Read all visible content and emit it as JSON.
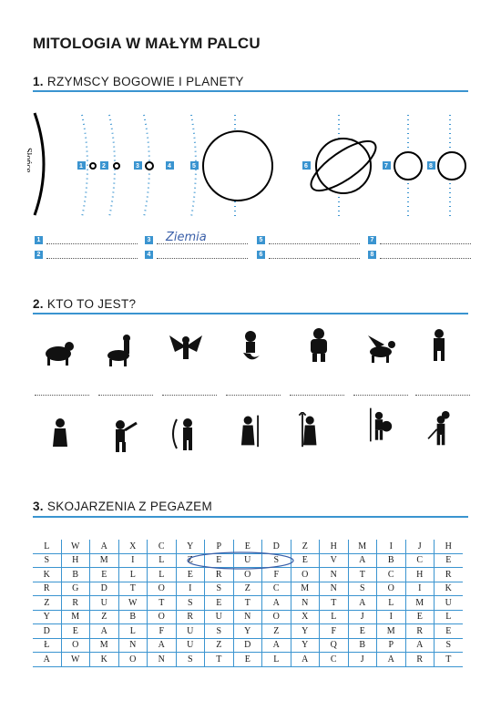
{
  "title": "MITOLOGIA W MAŁYM PALCU",
  "s1": {
    "num": "1.",
    "label": "RZYMSCY BOGOWIE I PLANETY",
    "sun": "Słońce",
    "answers_left": [
      "1",
      "2"
    ],
    "answers_mid": [
      "3",
      "4"
    ],
    "answers_right1": [
      "5",
      "6"
    ],
    "answers_right2": [
      "7",
      "8"
    ],
    "handwritten": "Ziemia",
    "planet_labels": [
      "1",
      "2",
      "3",
      "4",
      "5",
      "6",
      "7",
      "8"
    ]
  },
  "s2": {
    "num": "2.",
    "label": "KTO TO JEST?"
  },
  "s3": {
    "num": "3.",
    "label": "SKOJARZENIA Z PEGAZEM",
    "grid": [
      [
        "L",
        "W",
        "A",
        "X",
        "C",
        "Y",
        "P",
        "E",
        "D",
        "Z",
        "H",
        "M",
        "I",
        "J",
        "H"
      ],
      [
        "S",
        "H",
        "M",
        "I",
        "L",
        "Z",
        "E",
        "U",
        "S",
        "E",
        "V",
        "A",
        "B",
        "C",
        "E"
      ],
      [
        "K",
        "B",
        "E",
        "L",
        "L",
        "E",
        "R",
        "O",
        "F",
        "O",
        "N",
        "T",
        "C",
        "H",
        "R"
      ],
      [
        "R",
        "G",
        "D",
        "T",
        "O",
        "I",
        "S",
        "Z",
        "C",
        "M",
        "N",
        "S",
        "O",
        "I",
        "K"
      ],
      [
        "Z",
        "R",
        "U",
        "W",
        "T",
        "S",
        "E",
        "T",
        "A",
        "N",
        "T",
        "A",
        "L",
        "M",
        "U"
      ],
      [
        "Y",
        "M",
        "Z",
        "B",
        "O",
        "R",
        "U",
        "N",
        "O",
        "X",
        "L",
        "J",
        "I",
        "E",
        "L"
      ],
      [
        "D",
        "E",
        "A",
        "L",
        "F",
        "U",
        "S",
        "Y",
        "Z",
        "Y",
        "F",
        "E",
        "M",
        "R",
        "E"
      ],
      [
        "Ł",
        "O",
        "M",
        "N",
        "A",
        "U",
        "Z",
        "D",
        "A",
        "Y",
        "Q",
        "B",
        "P",
        "A",
        "S"
      ],
      [
        "A",
        "W",
        "K",
        "O",
        "N",
        "S",
        "T",
        "E",
        "L",
        "A",
        "C",
        "J",
        "A",
        "R",
        "T"
      ]
    ]
  }
}
